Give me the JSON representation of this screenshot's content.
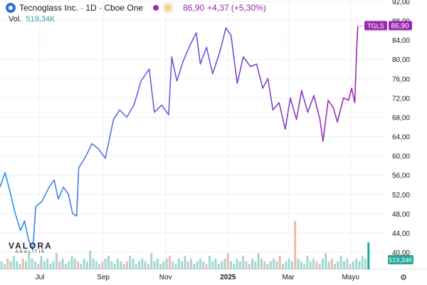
{
  "header": {
    "title": "Tecnoglass Inc. · 1D · Cboe One",
    "live_badge": "D",
    "last": "86,90",
    "change": "+4,37 (+5,30%)",
    "volume_label": "Vol.",
    "volume_value": "519,34K"
  },
  "brand": {
    "name": "VALORA",
    "tagline": "ANALITIK"
  },
  "icons": {
    "logo": "tecnoglass-logo-icon",
    "settings": "gear-icon"
  },
  "colors": {
    "line_start": "#2196f3",
    "line_end": "#9c27b0",
    "vol_up": "#a5d6d1",
    "vol_down": "#f3b5b5",
    "vol_highlight": "#26a69a",
    "grid": "#eef0f3"
  },
  "chart_data": {
    "type": "line",
    "ticker_label": "TGLS",
    "last_label": "86,90",
    "volume_last_label": "519,34K",
    "y_ticks": [
      "40,00",
      "44,00",
      "48,00",
      "52,00",
      "56,00",
      "60,00",
      "64,00",
      "68,00",
      "72,00",
      "76,00",
      "80,00",
      "84,00",
      "88,00",
      "92,00"
    ],
    "ylim": [
      40,
      92
    ],
    "x_ticks": [
      {
        "label": "Jul",
        "date": "2024-07-01"
      },
      {
        "label": "Sep",
        "date": "2024-09-01"
      },
      {
        "label": "Nov",
        "date": "2024-11-01"
      },
      {
        "label": "2025",
        "date": "2025-01-01",
        "bold": true
      },
      {
        "label": "Mar",
        "date": "2025-03-01"
      },
      {
        "label": "Mayo",
        "date": "2025-05-01"
      }
    ],
    "xlim": [
      "2024-05-23",
      "2025-05-20"
    ],
    "grid": true,
    "series": [
      {
        "points": [
          [
            "2024-05-23",
            53.5
          ],
          [
            "2024-05-28",
            56.5
          ],
          [
            "2024-06-03",
            51.5
          ],
          [
            "2024-06-07",
            48.0
          ],
          [
            "2024-06-12",
            44.5
          ],
          [
            "2024-06-16",
            46.5
          ],
          [
            "2024-06-20",
            42.5
          ],
          [
            "2024-06-24",
            40.5
          ],
          [
            "2024-06-27",
            49.5
          ],
          [
            "2024-07-03",
            50.5
          ],
          [
            "2024-07-10",
            53.5
          ],
          [
            "2024-07-15",
            55.0
          ],
          [
            "2024-07-19",
            51.0
          ],
          [
            "2024-07-24",
            53.5
          ],
          [
            "2024-07-29",
            52.0
          ],
          [
            "2024-08-02",
            48.0
          ],
          [
            "2024-08-06",
            47.5
          ],
          [
            "2024-08-08",
            57.5
          ],
          [
            "2024-08-14",
            59.5
          ],
          [
            "2024-08-21",
            62.5
          ],
          [
            "2024-08-27",
            61.5
          ],
          [
            "2024-09-03",
            59.5
          ],
          [
            "2024-09-11",
            67.5
          ],
          [
            "2024-09-17",
            69.5
          ],
          [
            "2024-09-24",
            68.0
          ],
          [
            "2024-10-01",
            70.5
          ],
          [
            "2024-10-08",
            75.5
          ],
          [
            "2024-10-16",
            78.0
          ],
          [
            "2024-10-21",
            69.0
          ],
          [
            "2024-10-28",
            70.5
          ],
          [
            "2024-11-04",
            68.5
          ],
          [
            "2024-11-07",
            80.5
          ],
          [
            "2024-11-12",
            75.5
          ],
          [
            "2024-11-18",
            79.5
          ],
          [
            "2024-11-25",
            83.0
          ],
          [
            "2024-12-01",
            85.5
          ],
          [
            "2024-12-05",
            79.0
          ],
          [
            "2024-12-11",
            82.5
          ],
          [
            "2024-12-17",
            77.0
          ],
          [
            "2024-12-24",
            81.5
          ],
          [
            "2024-12-30",
            86.5
          ],
          [
            "2025-01-04",
            85.0
          ],
          [
            "2025-01-10",
            75.0
          ],
          [
            "2025-01-16",
            80.5
          ],
          [
            "2025-01-23",
            78.5
          ],
          [
            "2025-01-29",
            79.0
          ],
          [
            "2025-02-04",
            74.0
          ],
          [
            "2025-02-09",
            76.0
          ],
          [
            "2025-02-14",
            69.5
          ],
          [
            "2025-02-20",
            71.0
          ],
          [
            "2025-02-26",
            65.5
          ],
          [
            "2025-03-03",
            72.0
          ],
          [
            "2025-03-09",
            67.5
          ],
          [
            "2025-03-14",
            73.5
          ],
          [
            "2025-03-20",
            69.0
          ],
          [
            "2025-03-26",
            72.5
          ],
          [
            "2025-04-01",
            67.5
          ],
          [
            "2025-04-04",
            63.0
          ],
          [
            "2025-04-09",
            71.5
          ],
          [
            "2025-04-14",
            70.0
          ],
          [
            "2025-04-18",
            67.0
          ],
          [
            "2025-04-24",
            72.0
          ],
          [
            "2025-04-29",
            71.5
          ],
          [
            "2025-05-02",
            74.0
          ],
          [
            "2025-05-05",
            71.0
          ],
          [
            "2025-05-07",
            82.5
          ],
          [
            "2025-05-08",
            86.9
          ]
        ]
      }
    ],
    "volume": {
      "values": [
        3,
        2,
        4,
        3,
        5,
        3,
        2,
        4,
        3,
        6,
        4,
        3,
        2,
        5,
        3,
        4,
        2,
        3,
        6,
        3,
        4,
        2,
        3,
        5,
        4,
        3,
        2,
        4,
        3,
        7,
        4,
        3,
        2,
        3,
        4,
        5,
        3,
        2,
        4,
        3,
        2,
        3,
        5,
        4,
        2,
        3,
        4,
        3,
        2,
        6,
        3,
        4,
        2,
        3,
        4,
        5,
        3,
        2,
        4,
        3,
        5,
        3,
        4,
        2,
        3,
        4,
        3,
        2,
        5,
        3,
        4,
        2,
        3,
        4,
        6,
        3,
        2,
        4,
        3,
        5,
        3,
        2,
        4,
        3,
        6,
        4,
        3,
        2,
        3,
        4,
        3,
        5,
        2,
        3,
        4,
        3,
        18,
        4,
        3,
        2,
        5,
        3,
        4,
        3,
        2,
        4,
        6,
        3,
        4,
        2,
        3,
        5,
        3,
        4,
        2,
        3,
        4,
        3,
        5,
        4,
        10
      ],
      "down_index": [
        2,
        7,
        12,
        19,
        25,
        33,
        41,
        48,
        55,
        61,
        67,
        74,
        80,
        86,
        91,
        96,
        103,
        108,
        114
      ]
    }
  }
}
